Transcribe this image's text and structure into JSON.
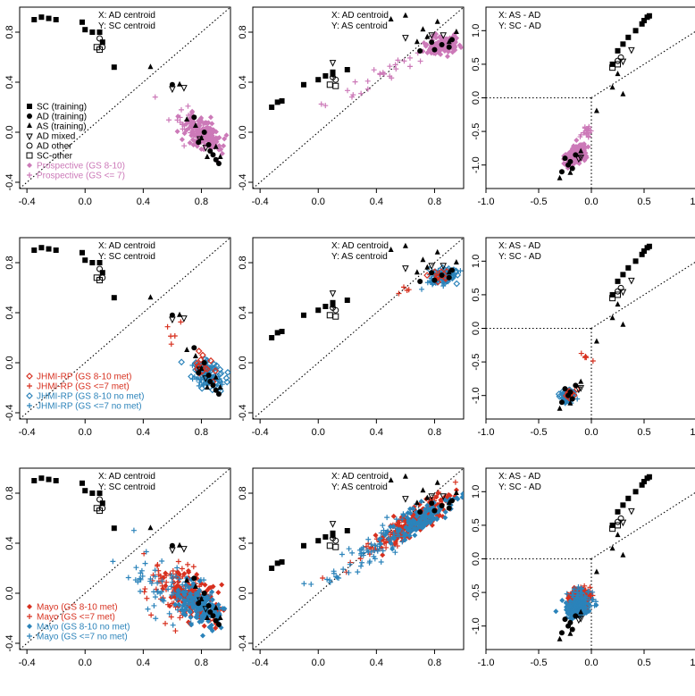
{
  "colors": {
    "training": "#000000",
    "prospective": "#cc79b8",
    "met": "#d7301f",
    "nomet": "#2b83ba",
    "axis": "#000000",
    "refline": "#000000"
  },
  "symbols": {
    "SC (training)": "square-filled",
    "AD (training)": "circle-filled",
    "AS (training)": "triangle-filled",
    "AD mixed": "triangle-down-open",
    "AD other": "circle-open",
    "SC-other": "square-open",
    "Prospective (GS 8-10)": "diamond-filled",
    "Prospective (GS <= 7)": "plus",
    "JHMI-RP (GS 8-10 met)": "diamond-open",
    "JHMI-RP (GS <=7 met)": "plus",
    "JHMI-RP (GS 8-10 no met)": "diamond-open",
    "JHMI-RP (GS <=7 no met)": "plus",
    "Mayo (GS 8-10 met)": "diamond-filled",
    "Mayo (GS <=7 met)": "plus",
    "Mayo (GS 8-10 no met)": "diamond-filled",
    "Mayo (GS <=7 no met)": "plus"
  },
  "chart_data": [
    {
      "type": "scatter",
      "row": 1,
      "col": 1,
      "xlabel": "X: AD centroid",
      "ylabel": "Y: SC centroid",
      "xlim": [
        -0.45,
        1.0
      ],
      "ylim": [
        -0.45,
        1.0
      ],
      "xticks": [
        -0.4,
        0.0,
        0.4,
        0.8
      ],
      "yticks": [
        -0.4,
        0.0,
        0.4,
        0.8
      ],
      "refline": "diagonal",
      "overlay": "prospective",
      "legend": [
        "SC (training)",
        "AD (training)",
        "AS (training)",
        "AD mixed",
        "AD other",
        "SC-other",
        "Prospective (GS 8-10)",
        "Prospective (GS <= 7)"
      ]
    },
    {
      "type": "scatter",
      "row": 1,
      "col": 2,
      "xlabel": "X: AD centroid",
      "ylabel": "Y: AS centroid",
      "xlim": [
        -0.45,
        1.0
      ],
      "ylim": [
        -0.45,
        1.0
      ],
      "xticks": [
        -0.4,
        0.0,
        0.4,
        0.8
      ],
      "yticks": [
        -0.4,
        0.0,
        0.4,
        0.8
      ],
      "refline": "diagonal",
      "overlay": "prospective"
    },
    {
      "type": "scatter",
      "row": 1,
      "col": 3,
      "xlabel": "X: AS - AD",
      "ylabel": "Y: SC - AD",
      "xlim": [
        -1.0,
        1.0
      ],
      "ylim": [
        -1.35,
        1.35
      ],
      "xticks": [
        -1.0,
        -0.5,
        0.0,
        0.5,
        1.0
      ],
      "yticks": [
        -1.0,
        -0.5,
        0.0,
        0.5,
        1.0
      ],
      "refline": "quadrant",
      "overlay": "prospective"
    },
    {
      "type": "scatter",
      "row": 2,
      "col": 1,
      "xlabel": "X: AD centroid",
      "ylabel": "Y: SC centroid",
      "xlim": [
        -0.45,
        1.0
      ],
      "ylim": [
        -0.45,
        1.0
      ],
      "xticks": [
        -0.4,
        0.0,
        0.4,
        0.8
      ],
      "yticks": [
        -0.4,
        0.0,
        0.4,
        0.8
      ],
      "refline": "diagonal",
      "overlay": "jhmi",
      "legend": [
        "JHMI-RP (GS 8-10 met)",
        "JHMI-RP (GS <=7 met)",
        "JHMI-RP (GS 8-10 no met)",
        "JHMI-RP (GS <=7 no met)"
      ]
    },
    {
      "type": "scatter",
      "row": 2,
      "col": 2,
      "xlabel": "X: AD centroid",
      "ylabel": "Y: AS centroid",
      "xlim": [
        -0.45,
        1.0
      ],
      "ylim": [
        -0.45,
        1.0
      ],
      "xticks": [
        -0.4,
        0.0,
        0.4,
        0.8
      ],
      "yticks": [
        -0.4,
        0.0,
        0.4,
        0.8
      ],
      "refline": "diagonal",
      "overlay": "jhmi"
    },
    {
      "type": "scatter",
      "row": 2,
      "col": 3,
      "xlabel": "X: AS - AD",
      "ylabel": "Y: SC - AD",
      "xlim": [
        -1.0,
        1.0
      ],
      "ylim": [
        -1.35,
        1.35
      ],
      "xticks": [
        -1.0,
        -0.5,
        0.0,
        0.5,
        1.0
      ],
      "yticks": [
        -1.0,
        -0.5,
        0.0,
        0.5,
        1.0
      ],
      "refline": "quadrant",
      "overlay": "jhmi"
    },
    {
      "type": "scatter",
      "row": 3,
      "col": 1,
      "xlabel": "X: AD centroid",
      "ylabel": "Y: SC centroid",
      "xlim": [
        -0.45,
        1.0
      ],
      "ylim": [
        -0.45,
        1.0
      ],
      "xticks": [
        -0.4,
        0.0,
        0.4,
        0.8
      ],
      "yticks": [
        -0.4,
        0.0,
        0.4,
        0.8
      ],
      "refline": "diagonal",
      "overlay": "mayo",
      "legend": [
        "Mayo (GS 8-10 met)",
        "Mayo (GS <=7 met)",
        "Mayo (GS 8-10 no met)",
        "Mayo (GS <=7 no met)"
      ]
    },
    {
      "type": "scatter",
      "row": 3,
      "col": 2,
      "xlabel": "X: AD centroid",
      "ylabel": "Y: AS centroid",
      "xlim": [
        -0.45,
        1.0
      ],
      "ylim": [
        -0.45,
        1.0
      ],
      "xticks": [
        -0.4,
        0.0,
        0.4,
        0.8
      ],
      "yticks": [
        -0.4,
        0.0,
        0.4,
        0.8
      ],
      "refline": "diagonal",
      "overlay": "mayo"
    },
    {
      "type": "scatter",
      "row": 3,
      "col": 3,
      "xlabel": "X: AS - AD",
      "ylabel": "Y: SC - AD",
      "xlim": [
        -1.0,
        1.0
      ],
      "ylim": [
        -1.35,
        1.35
      ],
      "xticks": [
        -1.0,
        -0.5,
        0.0,
        0.5,
        1.0
      ],
      "yticks": [
        -1.0,
        -0.5,
        0.0,
        0.5,
        1.0
      ],
      "refline": "quadrant",
      "overlay": "mayo"
    }
  ],
  "training_points": {
    "SC (training)": [
      [
        -0.35,
        0.9
      ],
      [
        -0.3,
        0.92
      ],
      [
        -0.25,
        0.91
      ],
      [
        -0.2,
        0.9
      ],
      [
        -0.02,
        0.88
      ],
      [
        0.0,
        0.82
      ],
      [
        0.05,
        0.8
      ],
      [
        0.1,
        0.8
      ],
      [
        0.12,
        0.72
      ],
      [
        0.2,
        0.52
      ]
    ],
    "AD (training)": [
      [
        0.6,
        0.38
      ],
      [
        0.75,
        0.12
      ],
      [
        0.82,
        0.0
      ],
      [
        0.85,
        -0.1
      ],
      [
        0.88,
        -0.18
      ],
      [
        0.9,
        -0.22
      ],
      [
        0.78,
        -0.08
      ],
      [
        0.92,
        -0.25
      ],
      [
        0.86,
        -0.15
      ]
    ],
    "AS (training)": [
      [
        0.45,
        0.52
      ],
      [
        0.65,
        0.38
      ],
      [
        0.7,
        0.1
      ],
      [
        0.8,
        -0.05
      ],
      [
        0.93,
        -0.2
      ],
      [
        0.76,
        0.05
      ],
      [
        0.9,
        -0.12
      ],
      [
        0.84,
        -0.2
      ]
    ],
    "AD mixed": [
      [
        0.6,
        0.35
      ],
      [
        0.68,
        0.36
      ],
      [
        0.79,
        -0.05
      ],
      [
        0.83,
        -0.12
      ]
    ],
    "AD other": [
      [
        0.1,
        0.75
      ],
      [
        0.12,
        0.68
      ]
    ],
    "SC-other": [
      [
        0.08,
        0.68
      ],
      [
        0.1,
        0.66
      ]
    ]
  },
  "training_points_panel2": {
    "SC (training)": [
      [
        -0.32,
        0.2
      ],
      [
        -0.28,
        0.24
      ],
      [
        -0.25,
        0.25
      ],
      [
        -0.1,
        0.38
      ],
      [
        0.0,
        0.42
      ],
      [
        0.05,
        0.45
      ],
      [
        0.1,
        0.48
      ],
      [
        0.2,
        0.5
      ]
    ],
    "AD (training)": [
      [
        0.1,
        0.46
      ],
      [
        0.7,
        0.65
      ],
      [
        0.78,
        0.72
      ],
      [
        0.85,
        0.7
      ],
      [
        0.9,
        0.68
      ],
      [
        0.8,
        0.66
      ],
      [
        0.92,
        0.74
      ]
    ],
    "AS (training)": [
      [
        0.5,
        0.9
      ],
      [
        0.6,
        0.93
      ],
      [
        0.72,
        0.82
      ],
      [
        0.75,
        0.76
      ],
      [
        0.9,
        0.72
      ],
      [
        0.68,
        0.72
      ],
      [
        0.82,
        0.88
      ],
      [
        0.95,
        0.8
      ]
    ],
    "AD mixed": [
      [
        0.1,
        0.56
      ],
      [
        0.6,
        0.76
      ],
      [
        0.78,
        0.78
      ],
      [
        0.86,
        0.78
      ]
    ],
    "AD other": [
      [
        0.1,
        0.44
      ],
      [
        0.12,
        0.42
      ]
    ],
    "SC-other": [
      [
        0.08,
        0.38
      ],
      [
        0.12,
        0.37
      ]
    ]
  },
  "training_points_panel3": {
    "SC (training)": [
      [
        0.2,
        0.5
      ],
      [
        0.25,
        0.7
      ],
      [
        0.3,
        0.8
      ],
      [
        0.35,
        0.9
      ],
      [
        0.42,
        1.0
      ],
      [
        0.48,
        1.1
      ],
      [
        0.5,
        1.15
      ],
      [
        0.53,
        1.2
      ],
      [
        0.55,
        1.22
      ]
    ],
    "AD (training)": [
      [
        -0.25,
        -0.9
      ],
      [
        -0.2,
        -0.95
      ],
      [
        -0.15,
        -0.85
      ],
      [
        -0.18,
        -1.05
      ],
      [
        -0.22,
        -1.0
      ],
      [
        -0.28,
        -1.1
      ]
    ],
    "AS (training)": [
      [
        0.05,
        -0.2
      ],
      [
        0.2,
        0.15
      ],
      [
        0.25,
        0.35
      ],
      [
        0.3,
        0.05
      ],
      [
        -0.3,
        -1.2
      ],
      [
        -0.2,
        -1.12
      ],
      [
        -0.1,
        -0.8
      ]
    ],
    "AD mixed": [
      [
        0.3,
        0.55
      ],
      [
        0.38,
        0.72
      ],
      [
        -0.12,
        -0.9
      ],
      [
        -0.1,
        -0.88
      ]
    ],
    "AD other": [
      [
        0.25,
        0.55
      ],
      [
        0.28,
        0.6
      ]
    ],
    "SC-other": [
      [
        0.2,
        0.45
      ],
      [
        0.25,
        0.5
      ]
    ]
  }
}
